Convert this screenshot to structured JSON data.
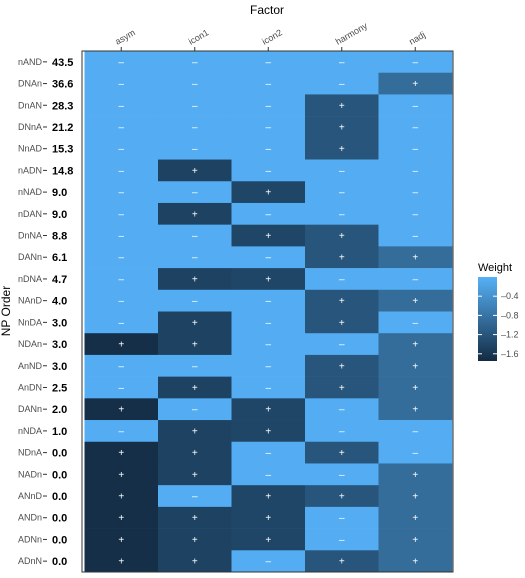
{
  "chart_data": {
    "type": "heatmap",
    "xlabel": "Factor",
    "ylabel": "NP Order",
    "columns": [
      "asym",
      "icon1",
      "icon2",
      "harmony",
      "nadj"
    ],
    "rows": [
      {
        "order": "nAND",
        "value": "43.5",
        "weights": [
          -0.05,
          -0.05,
          -0.05,
          -0.05,
          -0.05
        ],
        "signs": [
          "–",
          "–",
          "–",
          "–",
          "–"
        ]
      },
      {
        "order": "DNAn",
        "value": "36.6",
        "weights": [
          -0.05,
          -0.05,
          -0.05,
          -0.05,
          -0.9
        ],
        "signs": [
          "–",
          "–",
          "–",
          "–",
          "+"
        ]
      },
      {
        "order": "DnAN",
        "value": "28.3",
        "weights": [
          -0.05,
          -0.05,
          -0.05,
          -1.2,
          -0.05
        ],
        "signs": [
          "–",
          "–",
          "–",
          "+",
          "–"
        ]
      },
      {
        "order": "DNnA",
        "value": "21.2",
        "weights": [
          -0.05,
          -0.05,
          -0.05,
          -1.2,
          -0.05
        ],
        "signs": [
          "–",
          "–",
          "–",
          "+",
          "–"
        ]
      },
      {
        "order": "NnAD",
        "value": "15.3",
        "weights": [
          -0.05,
          -0.05,
          -0.05,
          -1.2,
          -0.05
        ],
        "signs": [
          "–",
          "–",
          "–",
          "+",
          "–"
        ]
      },
      {
        "order": "nADN",
        "value": "14.8",
        "weights": [
          -0.05,
          -1.45,
          -0.05,
          -0.05,
          -0.05
        ],
        "signs": [
          "–",
          "+",
          "–",
          "–",
          "–"
        ]
      },
      {
        "order": "nNAD",
        "value": "9.0",
        "weights": [
          -0.05,
          -0.05,
          -1.4,
          -0.05,
          -0.05
        ],
        "signs": [
          "–",
          "–",
          "+",
          "–",
          "–"
        ]
      },
      {
        "order": "nDAN",
        "value": "9.0",
        "weights": [
          -0.05,
          -1.45,
          -0.05,
          -0.05,
          -0.05
        ],
        "signs": [
          "–",
          "+",
          "–",
          "–",
          "–"
        ]
      },
      {
        "order": "DnNA",
        "value": "8.8",
        "weights": [
          -0.05,
          -0.05,
          -1.4,
          -1.2,
          -0.05
        ],
        "signs": [
          "–",
          "–",
          "+",
          "+",
          "–"
        ]
      },
      {
        "order": "DANn",
        "value": "6.1",
        "weights": [
          -0.05,
          -0.05,
          -0.05,
          -1.2,
          -0.9
        ],
        "signs": [
          "–",
          "–",
          "–",
          "+",
          "+"
        ]
      },
      {
        "order": "nDNA",
        "value": "4.7",
        "weights": [
          -0.05,
          -1.45,
          -1.4,
          -0.05,
          -0.05
        ],
        "signs": [
          "–",
          "+",
          "+",
          "–",
          "–"
        ]
      },
      {
        "order": "NAnD",
        "value": "4.0",
        "weights": [
          -0.05,
          -0.05,
          -0.05,
          -1.2,
          -0.9
        ],
        "signs": [
          "–",
          "–",
          "–",
          "+",
          "+"
        ]
      },
      {
        "order": "NnDA",
        "value": "3.0",
        "weights": [
          -0.05,
          -1.45,
          -0.05,
          -1.2,
          -0.05
        ],
        "signs": [
          "–",
          "+",
          "–",
          "+",
          "–"
        ]
      },
      {
        "order": "NDAn",
        "value": "3.0",
        "weights": [
          -1.7,
          -1.45,
          -0.05,
          -0.05,
          -0.9
        ],
        "signs": [
          "+",
          "+",
          "–",
          "–",
          "+"
        ]
      },
      {
        "order": "AnND",
        "value": "3.0",
        "weights": [
          -0.05,
          -0.05,
          -0.05,
          -1.2,
          -0.9
        ],
        "signs": [
          "–",
          "–",
          "–",
          "+",
          "+"
        ]
      },
      {
        "order": "AnDN",
        "value": "2.5",
        "weights": [
          -0.05,
          -1.45,
          -0.05,
          -1.2,
          -0.9
        ],
        "signs": [
          "–",
          "+",
          "–",
          "+",
          "+"
        ]
      },
      {
        "order": "DANn",
        "value": "2.0",
        "weights": [
          -1.7,
          -0.05,
          -1.4,
          -0.05,
          -0.9
        ],
        "signs": [
          "+",
          "–",
          "+",
          "–",
          "+"
        ]
      },
      {
        "order": "nNDA",
        "value": "1.0",
        "weights": [
          -0.05,
          -1.45,
          -1.4,
          -0.05,
          -0.05
        ],
        "signs": [
          "–",
          "+",
          "+",
          "–",
          "–"
        ]
      },
      {
        "order": "NDnA",
        "value": "0.0",
        "weights": [
          -1.7,
          -1.45,
          -0.05,
          -1.2,
          -0.05
        ],
        "signs": [
          "+",
          "+",
          "–",
          "+",
          "–"
        ]
      },
      {
        "order": "NADn",
        "value": "0.0",
        "weights": [
          -1.7,
          -1.45,
          -0.05,
          -0.05,
          -0.9
        ],
        "signs": [
          "+",
          "+",
          "–",
          "–",
          "+"
        ]
      },
      {
        "order": "ANnD",
        "value": "0.0",
        "weights": [
          -1.7,
          -0.05,
          -1.4,
          -1.2,
          -0.9
        ],
        "signs": [
          "+",
          "–",
          "+",
          "+",
          "+"
        ]
      },
      {
        "order": "ANDn",
        "value": "0.0",
        "weights": [
          -1.7,
          -1.45,
          -1.4,
          -0.05,
          -0.9
        ],
        "signs": [
          "+",
          "+",
          "+",
          "–",
          "+"
        ]
      },
      {
        "order": "ADNn",
        "value": "0.0",
        "weights": [
          -1.7,
          -1.45,
          -1.4,
          -0.05,
          -0.9
        ],
        "signs": [
          "+",
          "+",
          "+",
          "–",
          "+"
        ]
      },
      {
        "order": "ADnN",
        "value": "0.0",
        "weights": [
          -1.7,
          -1.45,
          -0.05,
          -1.2,
          -0.9
        ],
        "signs": [
          "+",
          "+",
          "–",
          "+",
          "+"
        ]
      }
    ],
    "legend": {
      "title": "Weight",
      "placement": "right",
      "min": -1.75,
      "max": 0,
      "ticks": [
        -0.4,
        -0.8,
        -1.2,
        -1.6
      ],
      "tick_labels": [
        "–0.4",
        "–0.8",
        "–1.2",
        "–1.6"
      ],
      "color_low": "#132b43",
      "color_high": "#56b1f7"
    },
    "grid": false
  }
}
